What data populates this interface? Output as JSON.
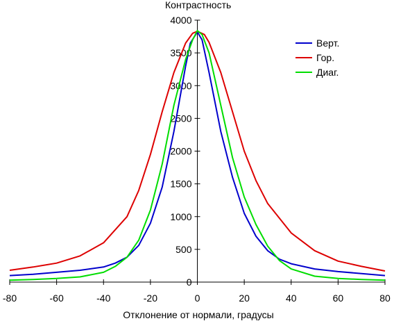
{
  "chart_data": {
    "type": "line",
    "title": "",
    "xlabel": "Отклонение от нормали, градусы",
    "ylabel": "Контрастность",
    "xlim": [
      -80,
      80
    ],
    "ylim": [
      0,
      4000
    ],
    "xticks": [
      -80,
      -60,
      -40,
      -20,
      0,
      20,
      40,
      60,
      80
    ],
    "yticks": [
      0,
      500,
      1000,
      1500,
      2000,
      2500,
      3000,
      3500,
      4000
    ],
    "grid": false,
    "legend_position": "top-right",
    "series": [
      {
        "name": "Верт.",
        "color": "#0000cc",
        "x": [
          -80,
          -70,
          -60,
          -50,
          -40,
          -35,
          -30,
          -25,
          -20,
          -15,
          -10,
          -5,
          -3,
          0,
          2,
          5,
          10,
          15,
          20,
          25,
          30,
          35,
          40,
          50,
          60,
          70,
          80
        ],
        "y": [
          100,
          120,
          150,
          180,
          230,
          290,
          380,
          560,
          900,
          1450,
          2300,
          3300,
          3650,
          3820,
          3700,
          3200,
          2300,
          1600,
          1050,
          700,
          480,
          350,
          280,
          200,
          160,
          130,
          100
        ]
      },
      {
        "name": "Гор.",
        "color": "#dd0000",
        "x": [
          -80,
          -70,
          -60,
          -50,
          -40,
          -30,
          -25,
          -20,
          -15,
          -10,
          -5,
          -2,
          0,
          3,
          5,
          10,
          15,
          20,
          25,
          30,
          40,
          50,
          60,
          70,
          80
        ],
        "y": [
          180,
          230,
          290,
          400,
          600,
          1000,
          1400,
          1950,
          2600,
          3200,
          3650,
          3800,
          3830,
          3780,
          3660,
          3200,
          2600,
          2000,
          1550,
          1200,
          750,
          480,
          320,
          240,
          170
        ]
      },
      {
        "name": "Диаг.",
        "color": "#00dd00",
        "x": [
          -80,
          -70,
          -60,
          -50,
          -40,
          -35,
          -30,
          -25,
          -20,
          -15,
          -10,
          -5,
          -2,
          0,
          2,
          5,
          10,
          15,
          20,
          25,
          30,
          35,
          40,
          50,
          60,
          70,
          80
        ],
        "y": [
          30,
          40,
          55,
          80,
          150,
          240,
          380,
          640,
          1100,
          1800,
          2700,
          3400,
          3700,
          3840,
          3780,
          3500,
          2700,
          1900,
          1300,
          880,
          550,
          330,
          200,
          90,
          55,
          40,
          30
        ]
      }
    ]
  }
}
